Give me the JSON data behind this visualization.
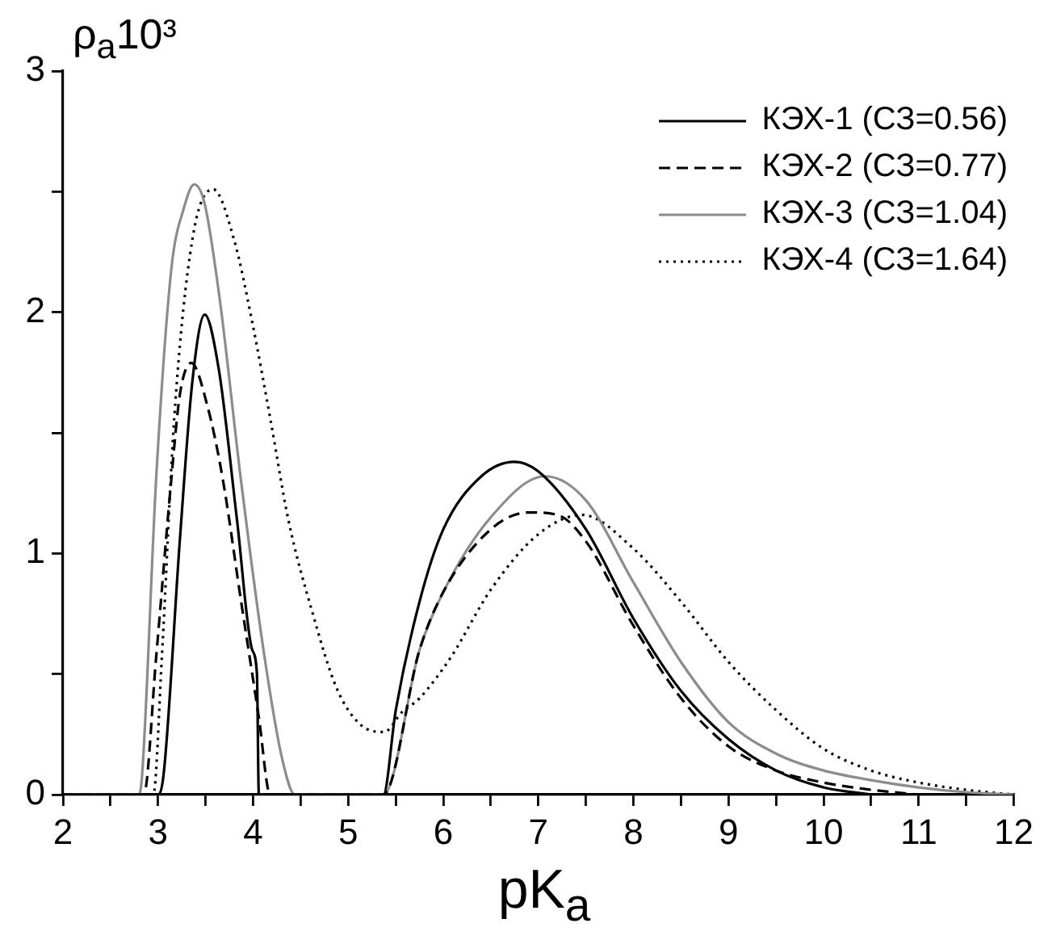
{
  "chart_data": {
    "type": "line",
    "xlabel": "pK$_{a}$",
    "ylabel": "ρ$_{a}$10³",
    "xlim": [
      2,
      12
    ],
    "ylim": [
      0,
      3
    ],
    "xticks": [
      2,
      {
        "value": 2.5,
        "label": null
      },
      3,
      {
        "value": 3.5,
        "label": null
      },
      4,
      {
        "value": 4.5,
        "label": null
      },
      5,
      {
        "value": 5.5,
        "label": null
      },
      6,
      {
        "value": 6.5,
        "label": null
      },
      7,
      {
        "value": 7.5,
        "label": null
      },
      8,
      {
        "value": 8.5,
        "label": null
      },
      9,
      {
        "value": 9.5,
        "label": null
      },
      10,
      {
        "value": 10.5,
        "label": null
      },
      11,
      {
        "value": 11.5,
        "label": null
      },
      12
    ],
    "yticks": [
      0,
      {
        "value": 0.5,
        "label": null
      },
      1,
      {
        "value": 1.5,
        "label": null
      },
      2,
      {
        "value": 2.5,
        "label": null
      },
      3
    ],
    "grid": false,
    "legend": "top right",
    "series": [
      {
        "name": "КЭХ-1 (СЗ=0.56)",
        "color": "#000000",
        "line_style": "solid",
        "x": [
          2,
          3.0,
          3.06,
          3.23,
          3.36,
          3.49,
          3.64,
          3.83,
          3.99,
          4.04,
          4.06,
          5.37,
          5.5,
          5.75,
          6.0,
          6.4,
          6.75,
          7.0,
          7.5,
          8,
          8.5,
          9,
          9.5,
          10,
          10.5
        ],
        "values": [
          0,
          0,
          0.09,
          1.06,
          1.71,
          1.99,
          1.76,
          1.14,
          0.6,
          0.5,
          0,
          0,
          0.35,
          0.8,
          1.1,
          1.32,
          1.38,
          1.34,
          1.1,
          0.73,
          0.43,
          0.23,
          0.1,
          0.03,
          0
        ]
      },
      {
        "name": "КЭХ-2 (СЗ=0.77)",
        "color": "#000000",
        "line_style": "dashed",
        "x": [
          2,
          2.85,
          2.98,
          3.14,
          3.23,
          3.35,
          3.52,
          3.68,
          3.87,
          4.06,
          4.18,
          5.37,
          5.75,
          6.0,
          6.5,
          6.9,
          7.2,
          7.5,
          8,
          8.5,
          9,
          9.5,
          10,
          10.5,
          11
        ],
        "values": [
          0,
          0,
          0.57,
          1.31,
          1.66,
          1.79,
          1.61,
          1.31,
          0.81,
          0.32,
          0,
          0,
          0.6,
          0.84,
          1.1,
          1.17,
          1.16,
          1.05,
          0.7,
          0.4,
          0.2,
          0.1,
          0.05,
          0.02,
          0
        ]
      },
      {
        "name": "КЭХ-3 (СЗ=1.04)",
        "color": "#8c8c8c",
        "line_style": "solid",
        "x": [
          2,
          2.79,
          2.83,
          2.98,
          3.14,
          3.27,
          3.38,
          3.49,
          3.65,
          3.87,
          4.12,
          4.31,
          4.44,
          5.37,
          5.75,
          6.0,
          6.5,
          7.07,
          7.5,
          8,
          8.5,
          9,
          9.5,
          10,
          10.5,
          11,
          11.5,
          12
        ],
        "values": [
          0,
          0,
          0.07,
          1.31,
          2.18,
          2.43,
          2.53,
          2.45,
          2.05,
          1.31,
          0.57,
          0.14,
          0,
          0,
          0.6,
          0.84,
          1.15,
          1.32,
          1.22,
          0.88,
          0.55,
          0.3,
          0.17,
          0.1,
          0.06,
          0.03,
          0.01,
          0
        ]
      },
      {
        "name": "КЭХ-4 (СЗ=1.64)",
        "color": "#000000",
        "line_style": "dotted",
        "x": [
          2,
          2.95,
          3.04,
          3.17,
          3.36,
          3.58,
          3.8,
          3.99,
          4.18,
          4.37,
          4.62,
          4.88,
          5.13,
          5.38,
          5.56,
          5.75,
          6.08,
          6.5,
          7.0,
          7.46,
          8,
          8.5,
          9,
          9.5,
          10,
          10.5,
          11,
          11.5,
          12
        ],
        "values": [
          0,
          0,
          0.57,
          1.56,
          2.3,
          2.51,
          2.3,
          1.96,
          1.56,
          1.14,
          0.76,
          0.44,
          0.29,
          0.26,
          0.34,
          0.4,
          0.57,
          0.85,
          1.08,
          1.16,
          1.02,
          0.8,
          0.55,
          0.35,
          0.19,
          0.1,
          0.05,
          0.02,
          0
        ]
      }
    ]
  }
}
